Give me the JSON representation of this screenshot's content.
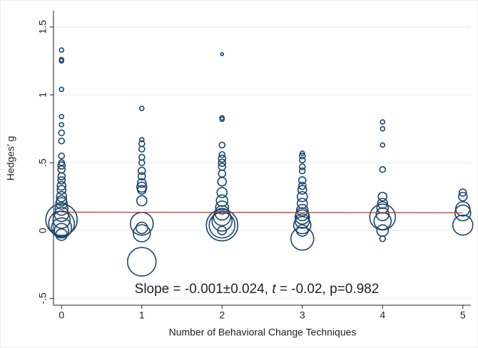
{
  "chart_data": {
    "type": "bubble",
    "x_label": "Number of Behavioral Change Techniques",
    "y_label": "Hedges' g",
    "annotation": {
      "prefix": "Slope = -0.001±0.024, ",
      "italic": "t",
      "suffix": " = -0.02, p=0.982"
    },
    "xlim": [
      -0.1,
      5.1
    ],
    "xticks": [
      0,
      1,
      2,
      3,
      4,
      5
    ],
    "ylim": [
      -0.55,
      1.62
    ],
    "yticks": [
      {
        "value": -0.5,
        "label": "-.5"
      },
      0,
      {
        "value": 0.5,
        "label": ".5"
      },
      1,
      1.5
    ],
    "grid": true,
    "series": [
      {
        "color": "#1a476f",
        "x": [
          0,
          0,
          0,
          0,
          0,
          0,
          0,
          0,
          0,
          0,
          0,
          0,
          0,
          0,
          0,
          0,
          0,
          0,
          0,
          0,
          0,
          0,
          0,
          0,
          0,
          0,
          0,
          1,
          1,
          1,
          1,
          1,
          1,
          1,
          1,
          1,
          1,
          1,
          1,
          1,
          1,
          1,
          1,
          2,
          2,
          2,
          2,
          2,
          2,
          2,
          2,
          2,
          2,
          2,
          2,
          2,
          2,
          2,
          2,
          2,
          2,
          2,
          3,
          3,
          3,
          3,
          3,
          3,
          3,
          3,
          3,
          3,
          3,
          3,
          3,
          3,
          3,
          3,
          3,
          4,
          4,
          4,
          4,
          4,
          4,
          4,
          4,
          4,
          4,
          4,
          4,
          5,
          5,
          5,
          5,
          5
        ],
        "values": [
          1.33,
          1.26,
          1.25,
          1.04,
          0.84,
          0.78,
          0.72,
          0.66,
          0.55,
          0.5,
          0.48,
          0.45,
          0.4,
          0.37,
          0.33,
          0.3,
          0.25,
          0.22,
          0.2,
          0.16,
          0.12,
          0.08,
          0.05,
          0.08,
          0,
          -0.03,
          0.02,
          0.9,
          0.67,
          0.64,
          0.6,
          0.54,
          0.5,
          0.44,
          0.4,
          0.35,
          0.32,
          0.3,
          0.22,
          0.05,
          -0.02,
          0.02,
          -0.23,
          1.3,
          0.83,
          0.82,
          0.63,
          0.56,
          0.53,
          0.5,
          0.47,
          0.42,
          0.36,
          0.28,
          0.22,
          0.17,
          0.13,
          0.1,
          0.07,
          0.04,
          0.04,
          0,
          0.57,
          0.55,
          0.52,
          0.47,
          0.44,
          0.37,
          0.33,
          0.3,
          0.25,
          0.2,
          0.15,
          0.12,
          0.1,
          0.07,
          0.04,
          -0.06,
          0,
          0.8,
          0.75,
          0.63,
          0.45,
          0.25,
          0.2,
          0.17,
          0.12,
          0.1,
          0.07,
          0,
          -0.06,
          0.28,
          0.25,
          0.16,
          0.13,
          0.04
        ],
        "sizes": [
          3,
          3,
          3,
          3,
          3,
          3,
          4,
          4,
          4,
          4,
          5,
          5,
          5,
          5,
          6,
          6,
          7,
          7,
          8,
          9,
          10,
          12,
          18,
          22,
          10,
          8,
          14,
          3,
          3,
          4,
          4,
          4,
          4,
          5,
          5,
          6,
          7,
          6,
          7,
          16,
          12,
          8,
          20,
          2,
          3,
          3,
          4,
          4,
          5,
          5,
          5,
          5,
          6,
          7,
          8,
          9,
          10,
          12,
          14,
          18,
          22,
          6,
          3,
          4,
          4,
          4,
          4,
          5,
          5,
          6,
          7,
          7,
          8,
          9,
          10,
          10,
          12,
          16,
          8,
          3,
          3,
          3,
          4,
          6,
          7,
          8,
          9,
          18,
          12,
          8,
          4,
          5,
          6,
          10,
          11,
          14
        ]
      },
      {
        "type": "line",
        "color": "#c0392b",
        "x": [
          0,
          5
        ],
        "values": [
          0.136,
          0.131
        ]
      }
    ]
  }
}
